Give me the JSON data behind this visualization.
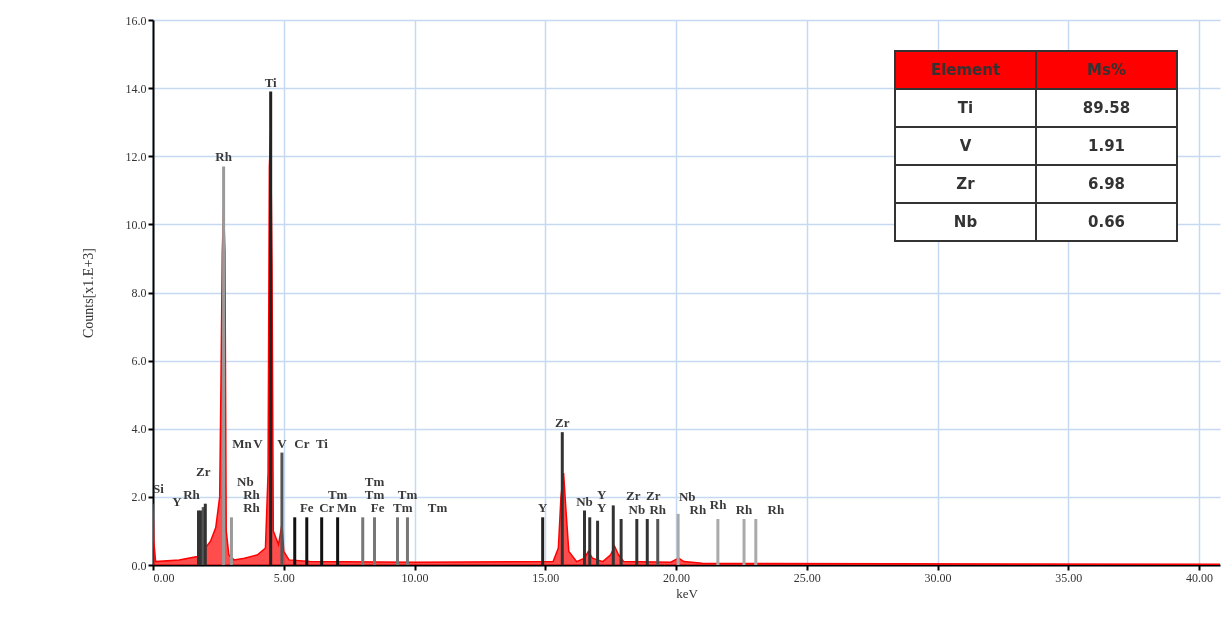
{
  "chart_data": [
    {
      "type": "area",
      "xlabel": "keV",
      "ylabel": "Counts[x1.E+3]",
      "xlim": [
        0,
        40.8
      ],
      "ylim": [
        0,
        16
      ],
      "xticks": [
        {
          "value": 0,
          "label": "0.00"
        },
        {
          "value": 5,
          "label": "5.00"
        },
        {
          "value": 10,
          "label": "10.00"
        },
        {
          "value": 15,
          "label": "15.00"
        },
        {
          "value": 20,
          "label": "20.00"
        },
        {
          "value": 25,
          "label": "25.00"
        },
        {
          "value": 30,
          "label": "30.00"
        },
        {
          "value": 35,
          "label": "35.00"
        },
        {
          "value": 40,
          "label": "40.00"
        }
      ],
      "yticks": [
        {
          "value": 0,
          "label": "0.0"
        },
        {
          "value": 2,
          "label": "2.0"
        },
        {
          "value": 4,
          "label": "4.0"
        },
        {
          "value": 6,
          "label": "6.0"
        },
        {
          "value": 8,
          "label": "8.0"
        },
        {
          "value": 10,
          "label": "10.0"
        },
        {
          "value": 12,
          "label": "12.0"
        },
        {
          "value": 14,
          "label": "14.0"
        },
        {
          "value": 16,
          "label": "16.0"
        }
      ],
      "grid": true,
      "series": [
        {
          "type": "area",
          "color": "#ff0000",
          "x": [
            0,
            0.03,
            0.1,
            1.0,
            1.7,
            1.9,
            2.2,
            2.4,
            2.55,
            2.6,
            2.65,
            2.7,
            2.75,
            2.8,
            2.9,
            3.1,
            3.5,
            4.0,
            4.3,
            4.4,
            4.45,
            4.5,
            4.55,
            4.6,
            4.8,
            4.93,
            5.0,
            5.2,
            6.0,
            10,
            15.3,
            15.5,
            15.6,
            15.7,
            15.8,
            15.9,
            16.2,
            16.5,
            16.65,
            16.8,
            17.2,
            17.5,
            17.65,
            17.8,
            18,
            19.8,
            20.1,
            20.3,
            21,
            40.8
          ],
          "values": [
            1.8,
            0.7,
            0.1,
            0.15,
            0.25,
            0.4,
            0.7,
            1.1,
            2.0,
            5.4,
            9.2,
            10.5,
            9.2,
            1.0,
            0.3,
            0.15,
            0.2,
            0.3,
            0.5,
            2.7,
            11.7,
            12.7,
            8.8,
            1.0,
            0.6,
            1.2,
            0.4,
            0.15,
            0.1,
            0.08,
            0.1,
            0.5,
            2.0,
            2.7,
            1.5,
            0.4,
            0.1,
            0.2,
            0.4,
            0.2,
            0.1,
            0.3,
            0.55,
            0.3,
            0.1,
            0.08,
            0.2,
            0.1,
            0.05,
            0.02
          ]
        },
        {
          "type": "bar",
          "x": [
            1.74,
            1.83,
            1.92,
            2.0,
            2.7,
            3.0,
            4.5,
            4.93,
            5.42,
            5.88,
            6.45,
            7.06,
            8.02,
            8.47,
            9.35,
            9.73,
            14.9,
            15.65,
            16.5,
            16.7,
            17.0,
            17.6,
            17.9,
            18.5,
            18.9,
            19.3,
            20.08,
            21.6,
            22.6,
            23.05
          ],
          "values": [
            1.6,
            1.6,
            1.7,
            1.8,
            11.7,
            1.4,
            13.9,
            3.3,
            1.4,
            1.4,
            1.4,
            1.4,
            1.4,
            1.4,
            1.4,
            1.4,
            1.4,
            3.9,
            1.6,
            1.4,
            1.3,
            1.75,
            1.35,
            1.35,
            1.35,
            1.35,
            1.5,
            1.35,
            1.35,
            1.35
          ],
          "colors": [
            "#333333",
            "#333333",
            "#555555",
            "#333333",
            "#9a9a9a",
            "#9a9a9a",
            "#222222",
            "#555555",
            "#111111",
            "#111111",
            "#111111",
            "#111111",
            "#777777",
            "#777777",
            "#777777",
            "#777777",
            "#222222",
            "#333333",
            "#333333",
            "#333333",
            "#333333",
            "#333333",
            "#333333",
            "#333333",
            "#333333",
            "#555555",
            "#aaaaaa",
            "#aaaaaa",
            "#aaaaaa",
            "#aaaaaa"
          ]
        }
      ],
      "annotations": [
        {
          "text": "Rh",
          "x": 3.0,
          "y": 1.4
        },
        {
          "text": "Rh",
          "x": 3.0,
          "y": 1.4
        },
        {
          "text": "Rh",
          "x": 3.0,
          "y": 1.4
        },
        {
          "text": "Si",
          "x": 1.74,
          "y": 1.6
        },
        {
          "text": "Y",
          "x": 1.83,
          "y": 1.6
        },
        {
          "text": "Zr",
          "x": 1.92,
          "y": 1.7
        },
        {
          "text": "Nb",
          "x": 2.0,
          "y": 1.8
        },
        {
          "text": "Rh",
          "x": 2.7,
          "y": 11.7
        },
        {
          "text": "Ti",
          "x": 4.5,
          "y": 13.9
        },
        {
          "text": "Cr",
          "x": 4.93,
          "y": 3.3
        },
        {
          "text": "V",
          "x": 4.93,
          "y": 3.3
        },
        {
          "text": "Mn",
          "x": 4.93,
          "y": 3.3
        },
        {
          "text": "Ti",
          "x": 4.93,
          "y": 3.3
        },
        {
          "text": "V",
          "x": 4.93,
          "y": 3.3
        },
        {
          "text": "Fe",
          "x": 5.88,
          "y": 1.4
        },
        {
          "text": "Cr",
          "x": 5.88,
          "y": 1.4
        },
        {
          "text": "Mn",
          "x": 5.88,
          "y": 1.4
        },
        {
          "text": "Fe",
          "x": 7.06,
          "y": 1.4
        },
        {
          "text": "Tm",
          "x": 7.06,
          "y": 1.4
        },
        {
          "text": "Tm",
          "x": 8.02,
          "y": 1.4
        },
        {
          "text": "Tm",
          "x": 8.47,
          "y": 1.4
        },
        {
          "text": "Tm",
          "x": 9.35,
          "y": 1.4
        },
        {
          "text": "Tm",
          "x": 9.73,
          "y": 1.4
        },
        {
          "text": "Tm",
          "x": 8.47,
          "y": 1.4
        },
        {
          "text": "Y",
          "x": 14.9,
          "y": 1.4
        },
        {
          "text": "Zr",
          "x": 15.65,
          "y": 3.9
        },
        {
          "text": "Nb",
          "x": 16.5,
          "y": 1.6
        },
        {
          "text": "Y",
          "x": 16.7,
          "y": 1.4
        },
        {
          "text": "Y",
          "x": 16.7,
          "y": 1.4
        },
        {
          "text": "Zr",
          "x": 17.6,
          "y": 1.75
        },
        {
          "text": "Zr",
          "x": 17.6,
          "y": 1.75
        },
        {
          "text": "Nb",
          "x": 18.5,
          "y": 1.35
        },
        {
          "text": "Nb",
          "x": 18.9,
          "y": 1.35
        },
        {
          "text": "Rh",
          "x": 19.3,
          "y": 1.35
        },
        {
          "text": "Rh",
          "x": 20.08,
          "y": 1.5
        },
        {
          "text": "Rh",
          "x": 21.6,
          "y": 1.35
        },
        {
          "text": "Rh",
          "x": 22.6,
          "y": 1.35
        },
        {
          "text": "Rh",
          "x": 23.05,
          "y": 1.35
        }
      ]
    },
    {
      "type": "other",
      "xlabel": "Element",
      "ylabel": "Ms%",
      "categories": [
        "Ti",
        "V",
        "Zr",
        "Nb"
      ],
      "values": [
        89.58,
        1.91,
        6.98,
        0.66
      ],
      "data_labels": true
    }
  ]
}
